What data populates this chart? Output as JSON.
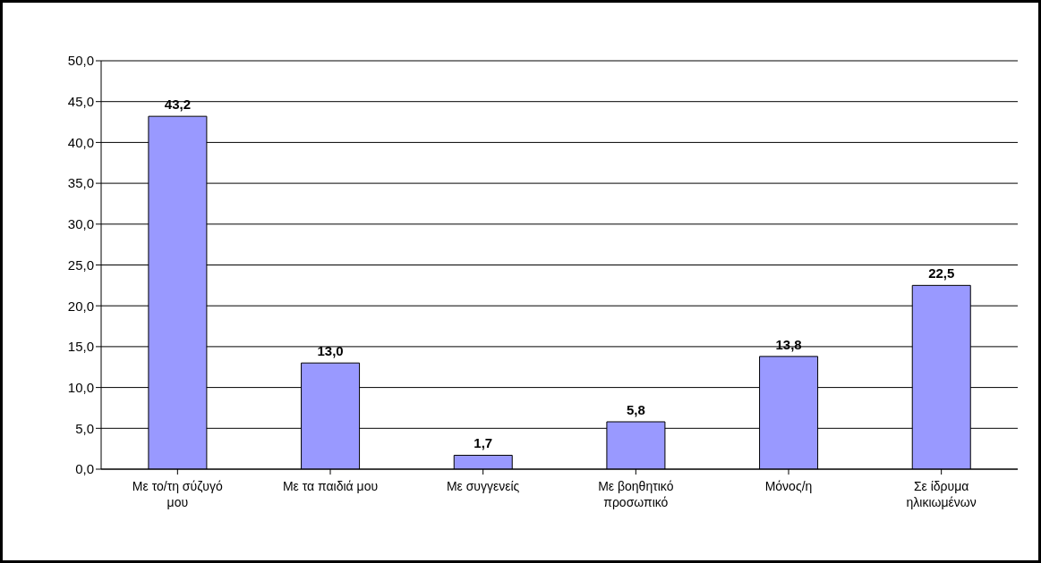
{
  "chart_data": {
    "type": "bar",
    "categories": [
      "Με το/τη σύζυγό μου",
      "Με τα παιδιά μου",
      "Με συγγενείς",
      "Με βοηθητικό προσωπικό",
      "Μόνος/η",
      "Σε ίδρυμα ηλικιωμένων"
    ],
    "values": [
      43.2,
      13.0,
      1.7,
      5.8,
      13.8,
      22.5
    ],
    "value_labels": [
      "43,2",
      "13,0",
      "1,7",
      "5,8",
      "13,8",
      "22,5"
    ],
    "color": "#9999ff",
    "ylim": [
      0,
      50
    ],
    "yticks": [
      {
        "value": 0,
        "label": "0,0"
      },
      {
        "value": 5,
        "label": "5,0"
      },
      {
        "value": 10,
        "label": "10,0"
      },
      {
        "value": 15,
        "label": "15,0"
      },
      {
        "value": 20,
        "label": "20,0"
      },
      {
        "value": 25,
        "label": "25,0"
      },
      {
        "value": 30,
        "label": "30,0"
      },
      {
        "value": 35,
        "label": "35,0"
      },
      {
        "value": 40,
        "label": "40,0"
      },
      {
        "value": 45,
        "label": "45,0"
      },
      {
        "value": 50,
        "label": "50,0"
      }
    ],
    "grid": "y",
    "legend": false
  }
}
